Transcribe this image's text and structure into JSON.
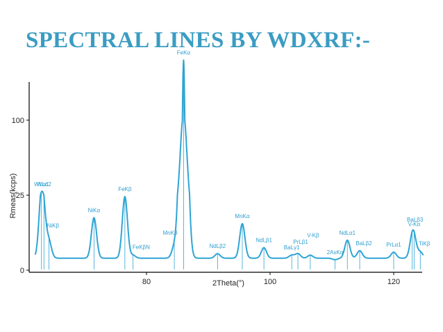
{
  "slide": {
    "title": "SPECTRAL LINES BY WDXRF:-"
  },
  "colors": {
    "title": "#3a9cc2",
    "spectrum": "#2ea4d4",
    "axis": "#000000"
  },
  "chart_data": {
    "type": "line",
    "xlabel": "2Theta(°)",
    "ylabel": "Rmeas(kcps)",
    "xlim": [
      61,
      125
    ],
    "ylim": [
      0,
      125
    ],
    "y_axis_break": true,
    "xticks": [
      80,
      100,
      120
    ],
    "yticks": [
      0,
      25,
      100
    ],
    "ytick_labels": [
      "0",
      "25",
      "100"
    ],
    "grid": false,
    "legend": "none",
    "baseline": 4,
    "peaks": [
      {
        "label": "WLα1",
        "x": 63.0,
        "y": 23.5
      },
      {
        "label": "WLα2",
        "x": 63.4,
        "y": 11.5
      },
      {
        "label": "NiKβ",
        "x": 64.2,
        "y": 9.5
      },
      {
        "label": "NiKα",
        "x": 71.5,
        "y": 17.5
      },
      {
        "label": "FeKβ",
        "x": 76.5,
        "y": 24.5
      },
      {
        "label": "FeKβN",
        "x": 77.8,
        "y": 5.0
      },
      {
        "label": "MnKβ",
        "x": 84.5,
        "y": 7.5
      },
      {
        "label": "FeKα",
        "x": 86.0,
        "y": 106.0
      },
      {
        "label": "NdLβ2",
        "x": 91.5,
        "y": 5.5
      },
      {
        "label": "MnKα",
        "x": 95.5,
        "y": 15.5
      },
      {
        "label": "NdLβ1",
        "x": 99.0,
        "y": 7.5
      },
      {
        "label": "BaLγ1",
        "x": 103.5,
        "y": 5.0
      },
      {
        "label": "PrLβ1",
        "x": 104.5,
        "y": 5.5
      },
      {
        "label": "V-Kβ",
        "x": 106.5,
        "y": 5.0
      },
      {
        "label": "2AsKα",
        "x": 110.5,
        "y": 3.5
      },
      {
        "label": "NdLα1",
        "x": 112.5,
        "y": 10.0
      },
      {
        "label": "BaLβ2",
        "x": 114.5,
        "y": 6.5
      },
      {
        "label": "PrLα1",
        "x": 120.0,
        "y": 6.0
      },
      {
        "label": "BaLβ3",
        "x": 123.0,
        "y": 9.5
      },
      {
        "label": "V-Kα",
        "x": 123.3,
        "y": 8.5
      },
      {
        "label": "TiKβ",
        "x": 124.3,
        "y": 6.0
      }
    ]
  }
}
